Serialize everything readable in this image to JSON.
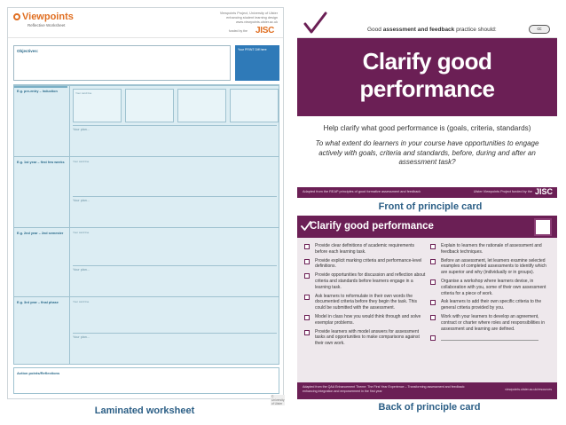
{
  "worksheet": {
    "logo": "Viewpoints",
    "subtitle": "Reflective Worksheet",
    "header_right": [
      "Viewpoints Project, University of Ulster",
      "enhancing student learning design",
      "www.viewpoints.ulster.ac.uk"
    ],
    "funded_by": "funded by the",
    "jisc": "JISC",
    "objectives_label": "Objectives:",
    "bluebox_label": "Your PRINT Diff here",
    "rows": [
      {
        "label": "E.g. pre-entry – Induction",
        "mini_label": "Your card line",
        "plan": "Your plan..."
      },
      {
        "label": "E.g. 1st year – first few weeks",
        "mini_label": "Your card line",
        "plan": "Your plan..."
      },
      {
        "label": "E.g. 2nd year – 2nd semester",
        "mini_label": "Your card line",
        "plan": "Your plan..."
      },
      {
        "label": "E.g. 3rd year – final phase",
        "mini_label": "Your card line",
        "plan": "Your plan..."
      }
    ],
    "action_label": "Action points/Reflections",
    "footer": "© University of Ulster"
  },
  "captions": {
    "worksheet": "Laminated worksheet",
    "front": "Front of principle card",
    "back": "Back of principle card"
  },
  "front_card": {
    "tagline_prefix": "Good ",
    "tagline_bold": "assessment and feedback",
    "tagline_suffix": " practice should:",
    "cc": "cc",
    "title": "Clarify good performance",
    "question": "Help clarify what good performance is (goals, criteria, standards)",
    "prompt": "To what extent do learners in your course have opportunities to engage actively with goals, criteria and standards, before, during and after an assessment task?",
    "footer_left": "Adapted from the REAP principles of good formative assessment and feedback",
    "footer_right": "Ulster Viewpoints Project funded by the",
    "jisc": "JISC",
    "colors": {
      "primary": "#6b1f55",
      "panel": "#ffffff"
    }
  },
  "back_card": {
    "title": "Clarify good performance",
    "left_items": [
      "Provide clear definitions of academic requirements before each learning task.",
      "Provide explicit marking criteria and performance-level definitions.",
      "Provide opportunities for discussion and reflection about criteria and standards before learners engage in a learning task.",
      "Ask learners to reformulate in their own words the documented criteria before they begin the task. This could be submitted with the assessment.",
      "Model in class how you would think through and solve exemplar problems.",
      "Provide learners with model answers for assessment tasks and opportunities to make comparisons against their own work."
    ],
    "right_items": [
      "Explain to learners the rationale of assessment and feedback techniques.",
      "Before an assessment, let learners examine selected examples of completed assessments to identify which are superior and why (individually or in groups).",
      "Organise a workshop where learners devise, in collaboration with you, some of their own assessment criteria for a piece of work.",
      "Ask learners to add their own specific criteria to the general criteria provided by you.",
      "Work with your learners to develop an agreement, contract or charter where roles and responsibilities in assessment and learning are defined."
    ],
    "footer_left": "Adapted from the QAA Enhancement Theme: The First Year Experience – Transforming assessment and feedback: enhancing integration and empowerment in the first year",
    "footer_right": "viewpoints.ulster.ac.uk/resources"
  }
}
